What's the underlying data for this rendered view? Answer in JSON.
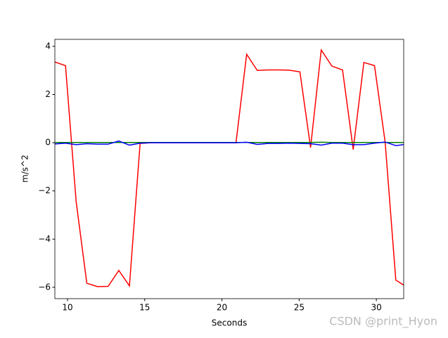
{
  "chart_data": {
    "type": "line",
    "xlabel": "Seconds",
    "ylabel": "m/s^2",
    "watermark": "CSDN @print_Hyon",
    "x": [
      9.18,
      9.87,
      10.56,
      11.25,
      11.94,
      12.63,
      13.32,
      14.01,
      14.7,
      15.39,
      16.08,
      16.77,
      17.46,
      18.15,
      18.84,
      19.53,
      20.22,
      20.91,
      21.6,
      22.29,
      22.98,
      23.67,
      24.36,
      25.05,
      25.74,
      26.43,
      27.12,
      27.81,
      28.5,
      29.19,
      29.88,
      30.57,
      31.26,
      31.95
    ],
    "series": [
      {
        "color": "#ff0000",
        "values": [
          3.35,
          3.2,
          -2.45,
          -5.83,
          -5.97,
          -5.96,
          -5.3,
          -5.94,
          -0.03,
          0,
          0,
          0,
          0,
          0,
          0,
          0,
          0,
          0,
          3.67,
          3.0,
          3.02,
          3.02,
          3.01,
          2.94,
          -0.2,
          3.85,
          3.18,
          3.02,
          -0.28,
          3.33,
          3.2,
          0.02,
          -5.7,
          -5.98
        ]
      },
      {
        "color": "#008000",
        "values": [
          0.01,
          0.01,
          0.01,
          0.01,
          0.01,
          0.01,
          0.01,
          0.01,
          0.01,
          0.01,
          0.01,
          0.01,
          0.01,
          0.01,
          0.01,
          0.01,
          0.01,
          0.01,
          0.01,
          0.01,
          0.01,
          0.01,
          0.01,
          0.01,
          0.01,
          0.02,
          0.01,
          0.01,
          0.01,
          0.01,
          0.01,
          0.01,
          0.01,
          0.01
        ]
      },
      {
        "color": "#0000ff",
        "values": [
          -0.05,
          -0.02,
          -0.08,
          -0.04,
          -0.06,
          -0.06,
          0.07,
          -0.1,
          -0.02,
          0,
          0,
          0,
          0,
          0,
          0,
          0,
          0,
          0,
          0.02,
          -0.07,
          -0.03,
          -0.03,
          -0.02,
          -0.03,
          -0.04,
          -0.1,
          -0.02,
          -0.02,
          -0.08,
          -0.08,
          -0.02,
          0.03,
          -0.12,
          -0.06
        ]
      }
    ],
    "xlim": [
      9.18,
      31.77
    ],
    "ylim": [
      -6.47,
      4.29
    ],
    "xticks": [
      10,
      15,
      20,
      25,
      30
    ],
    "yticks": [
      {
        "value": -6,
        "label": "−6"
      },
      {
        "value": -4,
        "label": "−4"
      },
      {
        "value": -2,
        "label": "−2"
      },
      0,
      2,
      4
    ]
  }
}
